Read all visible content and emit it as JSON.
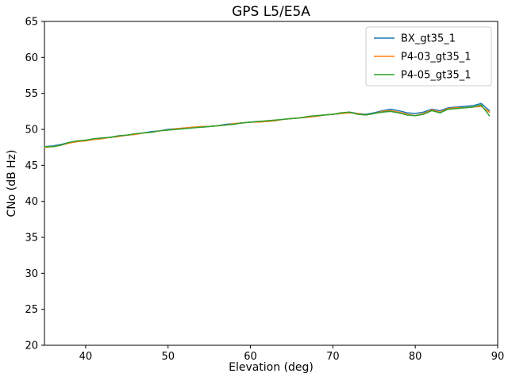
{
  "chart_data": {
    "type": "line",
    "title": "GPS L5/E5A",
    "xlabel": "Elevation (deg)",
    "ylabel": "CNo (dB Hz)",
    "xlim": [
      35,
      90
    ],
    "ylim": [
      20,
      65
    ],
    "xticks": [
      40,
      50,
      60,
      70,
      80,
      90
    ],
    "yticks": [
      20,
      25,
      30,
      35,
      40,
      45,
      50,
      55,
      60,
      65
    ],
    "grid": false,
    "legend_position": "upper right",
    "x": [
      35,
      36,
      37,
      38,
      39,
      40,
      41,
      42,
      43,
      44,
      45,
      46,
      47,
      48,
      49,
      50,
      51,
      52,
      53,
      54,
      55,
      56,
      57,
      58,
      59,
      60,
      61,
      62,
      63,
      64,
      65,
      66,
      67,
      68,
      69,
      70,
      71,
      72,
      73,
      74,
      75,
      76,
      77,
      78,
      79,
      80,
      81,
      82,
      83,
      84,
      85,
      86,
      87,
      88,
      89
    ],
    "series": [
      {
        "name": "BX_gt35_1",
        "color": "#1f77b4",
        "values": [
          47.6,
          47.7,
          47.9,
          48.2,
          48.3,
          48.5,
          48.6,
          48.8,
          48.9,
          49.1,
          49.2,
          49.3,
          49.5,
          49.7,
          49.8,
          50.0,
          50.1,
          50.2,
          50.3,
          50.3,
          50.4,
          50.5,
          50.7,
          50.8,
          50.9,
          51.0,
          51.1,
          51.1,
          51.2,
          51.4,
          51.5,
          51.6,
          51.7,
          51.9,
          52.0,
          52.1,
          52.2,
          52.4,
          52.2,
          52.1,
          52.3,
          52.6,
          52.8,
          52.6,
          52.3,
          52.2,
          52.4,
          52.8,
          52.6,
          53.0,
          53.1,
          53.2,
          53.3,
          53.6,
          52.6
        ]
      },
      {
        "name": "P4-03_gt35_1",
        "color": "#ff7f0e",
        "values": [
          47.5,
          47.6,
          47.8,
          48.1,
          48.3,
          48.4,
          48.6,
          48.7,
          48.9,
          49.0,
          49.2,
          49.3,
          49.5,
          49.6,
          49.8,
          49.9,
          50.1,
          50.2,
          50.3,
          50.4,
          50.4,
          50.5,
          50.6,
          50.8,
          50.9,
          51.0,
          51.0,
          51.1,
          51.2,
          51.4,
          51.5,
          51.6,
          51.7,
          51.8,
          52.0,
          52.1,
          52.2,
          52.3,
          52.2,
          52.0,
          52.2,
          52.5,
          52.6,
          52.4,
          52.1,
          51.9,
          52.2,
          52.7,
          52.4,
          52.9,
          53.0,
          53.0,
          53.1,
          53.2,
          52.4
        ]
      },
      {
        "name": "P4-05_gt35_1",
        "color": "#2ca02c",
        "values": [
          47.6,
          47.6,
          47.8,
          48.2,
          48.4,
          48.5,
          48.7,
          48.8,
          48.9,
          49.1,
          49.2,
          49.4,
          49.5,
          49.6,
          49.8,
          49.9,
          50.0,
          50.1,
          50.2,
          50.3,
          50.4,
          50.5,
          50.6,
          50.7,
          50.9,
          51.0,
          51.1,
          51.2,
          51.3,
          51.4,
          51.5,
          51.6,
          51.8,
          51.9,
          52.0,
          52.1,
          52.3,
          52.4,
          52.1,
          52.0,
          52.2,
          52.4,
          52.5,
          52.3,
          52.0,
          51.9,
          52.1,
          52.6,
          52.3,
          52.8,
          52.9,
          53.0,
          53.1,
          53.4,
          51.9
        ]
      }
    ]
  }
}
